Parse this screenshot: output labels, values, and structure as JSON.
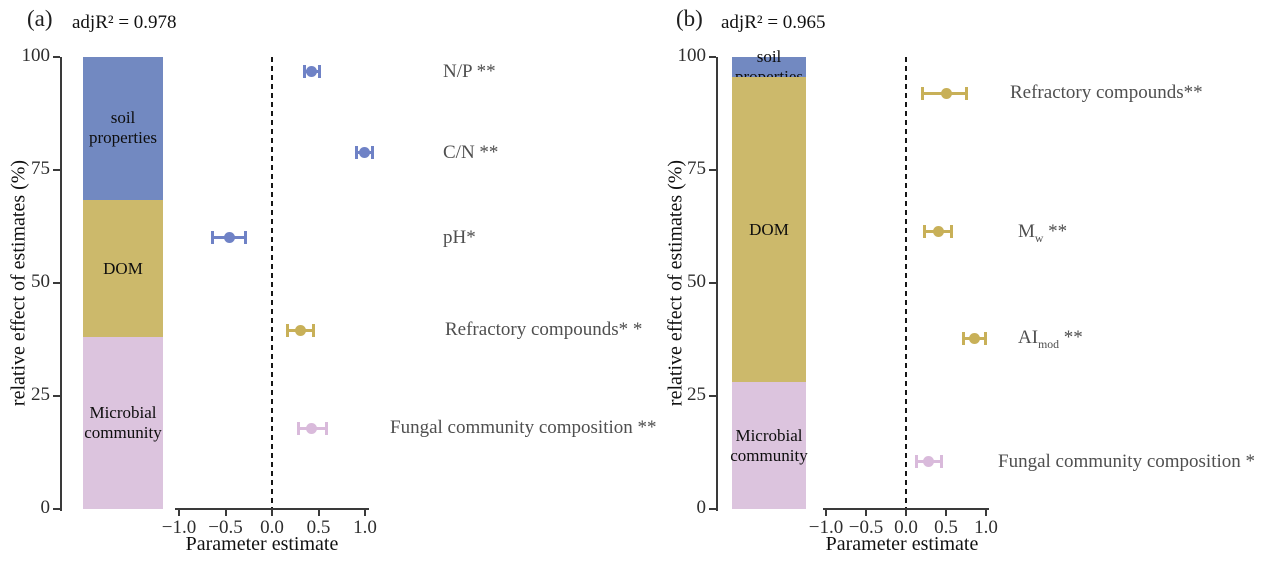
{
  "colors": {
    "blue": "#7289c1",
    "gold": "#ccb96b",
    "pink": "#dcc4de",
    "point_blue": "#6f82c6",
    "point_gold": "#c8b058",
    "point_pink": "#d9badb"
  },
  "chart_data": [
    {
      "panel_tag": "(a)",
      "adj_r2": "adjR² = 0.978",
      "type": "stacked-bar + dot-whisker",
      "ylabel": "relative effect of estimates (%)",
      "xlabel": "Parameter estimate",
      "ylim": [
        0,
        100
      ],
      "xlim": [
        -1.0,
        1.0
      ],
      "y_tick_values": [
        100,
        75,
        50,
        25,
        0
      ],
      "y_tick_labels": [
        "100",
        "75",
        "50",
        "25",
        "0"
      ],
      "x_tick_values": [
        -1.0,
        -0.5,
        0.0,
        0.5,
        1.0
      ],
      "x_tick_labels": [
        "−1.0",
        "−0.5",
        "0.0",
        "0.5",
        "1.0"
      ],
      "zero_reference_line": 0,
      "bar_segments": [
        {
          "label": "soil properties",
          "from_pct": 68.4,
          "to_pct": 100,
          "color": "blue"
        },
        {
          "label": "DOM",
          "from_pct": 38.0,
          "to_pct": 68.4,
          "color": "gold"
        },
        {
          "label": "Microbial community",
          "from_pct": 0,
          "to_pct": 38.0,
          "color": "pink"
        }
      ],
      "points": [
        {
          "label": "N/P **",
          "sub": "",
          "suffix": "",
          "estimate": 0.43,
          "ci": [
            0.34,
            0.52
          ],
          "y_pct": 96.7,
          "color": "blue"
        },
        {
          "label": "C/N **",
          "sub": "",
          "suffix": "",
          "estimate": 0.99,
          "ci": [
            0.9,
            1.09
          ],
          "y_pct": 78.8,
          "color": "blue"
        },
        {
          "label": "pH*",
          "sub": "",
          "suffix": "",
          "estimate": -0.46,
          "ci": [
            -0.65,
            -0.28
          ],
          "y_pct": 60.0,
          "color": "blue"
        },
        {
          "label": "Refractory compounds* *",
          "sub": "",
          "suffix": "",
          "estimate": 0.31,
          "ci": [
            0.16,
            0.45
          ],
          "y_pct": 39.6,
          "color": "gold"
        },
        {
          "label": "Fungal community composition **",
          "sub": "",
          "suffix": "",
          "estimate": 0.42,
          "ci": [
            0.28,
            0.59
          ],
          "y_pct": 17.9,
          "color": "pink"
        }
      ]
    },
    {
      "panel_tag": "(b)",
      "adj_r2": "adjR² = 0.965",
      "type": "stacked-bar + dot-whisker",
      "ylabel": "relative effect of estimates (%)",
      "xlabel": "Parameter estimate",
      "ylim": [
        0,
        100
      ],
      "xlim": [
        -1.0,
        1.0
      ],
      "y_tick_values": [
        100,
        75,
        50,
        25,
        0
      ],
      "y_tick_labels": [
        "100",
        "75",
        "50",
        "25",
        "0"
      ],
      "x_tick_values": [
        -1.0,
        -0.5,
        0.0,
        0.5,
        1.0
      ],
      "x_tick_labels": [
        "−1.0",
        "−0.5",
        "0.0",
        "0.5",
        "1.0"
      ],
      "zero_reference_line": 0,
      "bar_segments": [
        {
          "label": "soil properties",
          "from_pct": 95.5,
          "to_pct": 100,
          "color": "blue"
        },
        {
          "label": "DOM",
          "from_pct": 28.0,
          "to_pct": 95.5,
          "color": "gold"
        },
        {
          "label": "Microbial community",
          "from_pct": 0,
          "to_pct": 28.0,
          "color": "pink"
        }
      ],
      "points": [
        {
          "label": "Refractory compounds**",
          "sub": "",
          "suffix": "",
          "estimate": 0.5,
          "ci": [
            0.2,
            0.76
          ],
          "y_pct": 92.0,
          "color": "gold"
        },
        {
          "label": "M",
          "sub": "w",
          "suffix": " **",
          "estimate": 0.4,
          "ci": [
            0.23,
            0.58
          ],
          "y_pct": 61.3,
          "color": "gold"
        },
        {
          "label": "AI",
          "sub": "mod",
          "suffix": " **",
          "estimate": 0.85,
          "ci": [
            0.71,
            1.0
          ],
          "y_pct": 37.8,
          "color": "gold"
        },
        {
          "label": "Fungal community composition *",
          "sub": "",
          "suffix": "",
          "estimate": 0.28,
          "ci": [
            0.13,
            0.45
          ],
          "y_pct": 10.4,
          "color": "pink"
        }
      ]
    }
  ]
}
